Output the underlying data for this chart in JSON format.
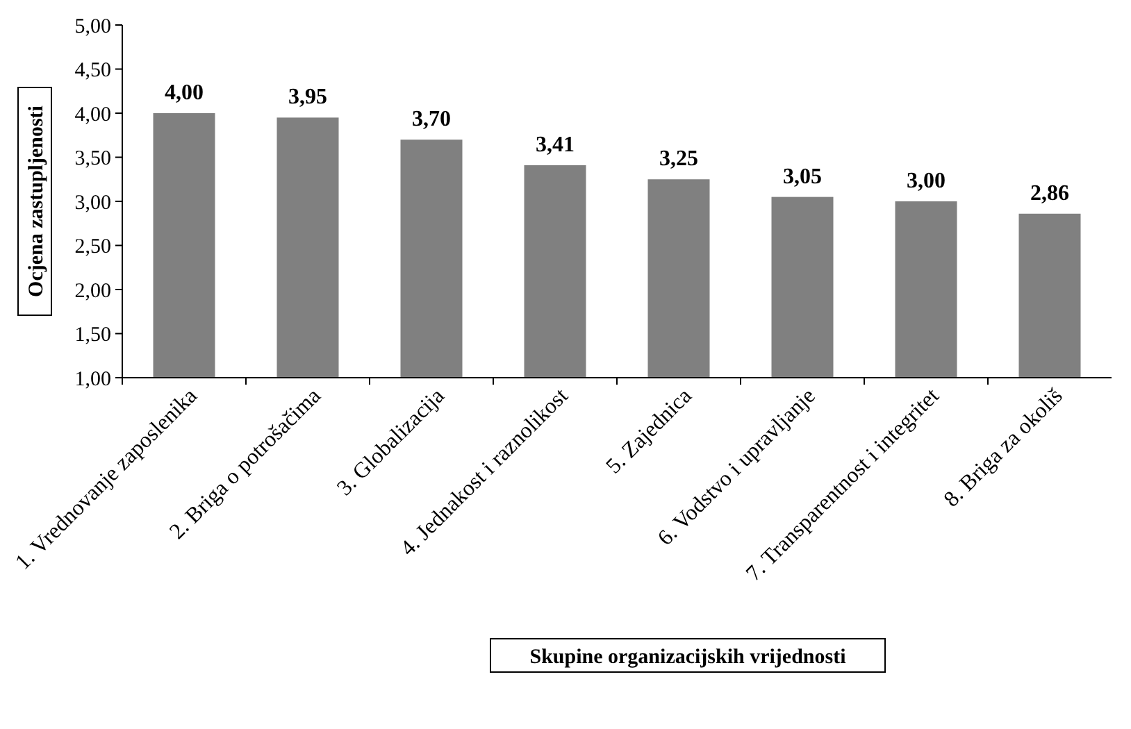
{
  "chart_data": {
    "type": "bar",
    "xlabel": "Skupine organizacijskih vrijednosti",
    "ylabel": "Ocjena zastupljenosti",
    "categories": [
      "1. Vrednovanje zaposlenika",
      "2. Briga o potrošačima",
      "3. Globalizacija",
      "4. Jednakost i raznolikost",
      "5. Zajednica",
      "6. Vodstvo i upravljanje",
      "7. Transparentnost i integritet",
      "8. Briga za okoliš"
    ],
    "values": [
      4.0,
      3.95,
      3.7,
      3.41,
      3.25,
      3.05,
      3.0,
      2.86
    ],
    "value_labels": [
      "4,00",
      "3,95",
      "3,70",
      "3,41",
      "3,25",
      "3,05",
      "3,00",
      "2,86"
    ],
    "color": "#808080",
    "ylim": [
      1,
      5
    ],
    "yticks": [
      {
        "value": 1,
        "label": "1,00"
      },
      {
        "value": 1.5,
        "label": "1,50"
      },
      {
        "value": 2,
        "label": "2,00"
      },
      {
        "value": 2.5,
        "label": "2,50"
      },
      {
        "value": 3,
        "label": "3,00"
      },
      {
        "value": 3.5,
        "label": "3,50"
      },
      {
        "value": 4,
        "label": "4,00"
      },
      {
        "value": 4.5,
        "label": "4,50"
      },
      {
        "value": 5,
        "label": "5,00"
      }
    ],
    "grid": false
  }
}
